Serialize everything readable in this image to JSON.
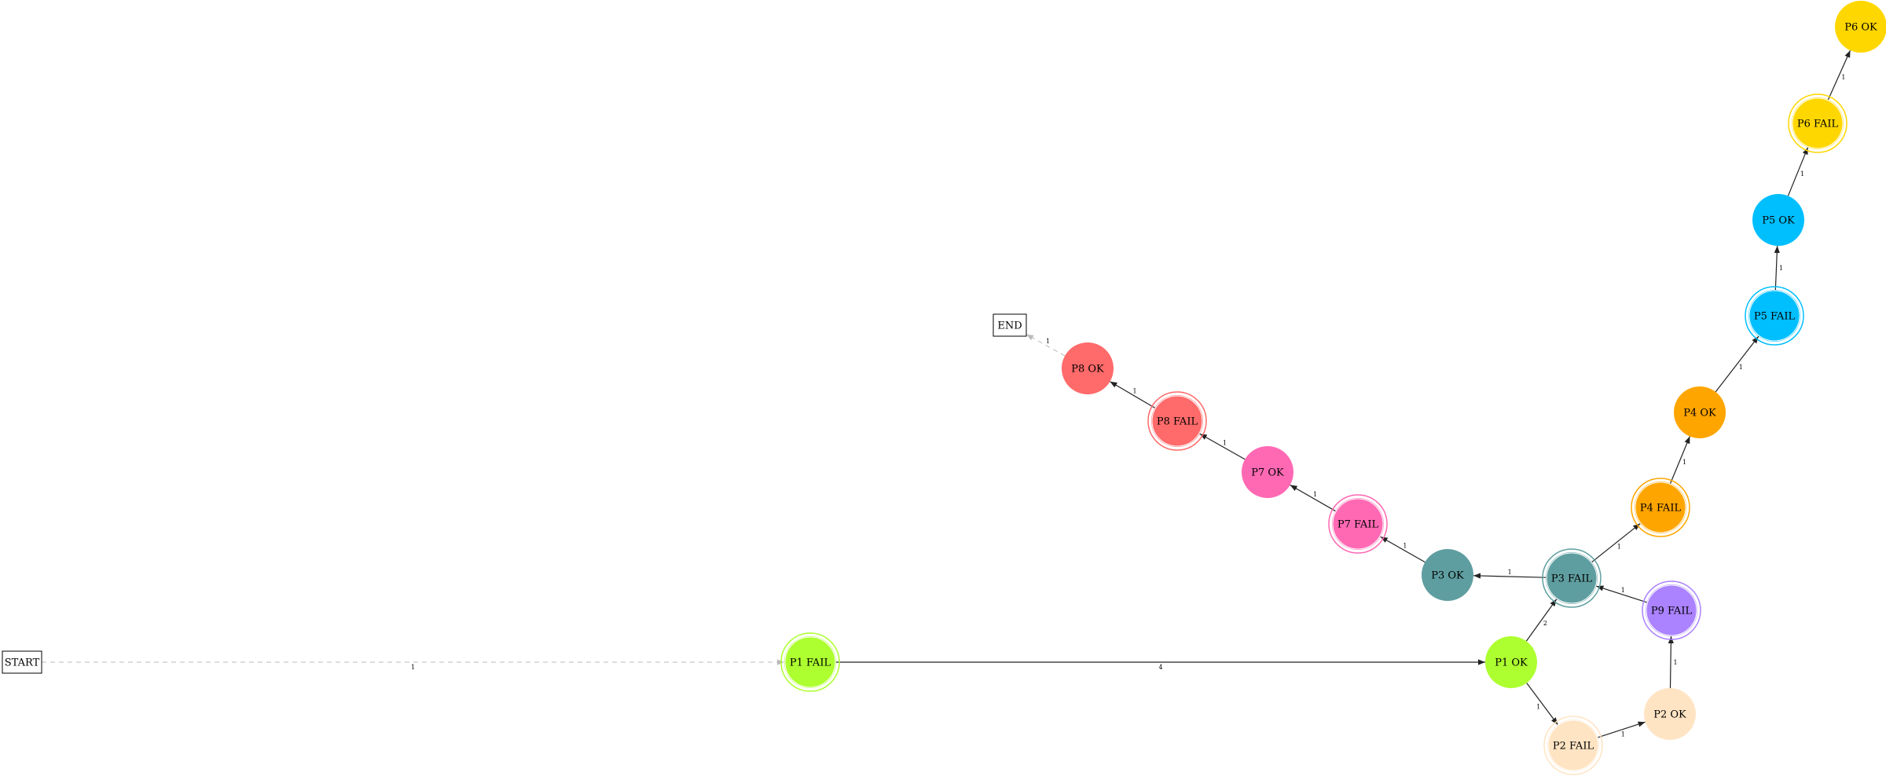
{
  "nodes": [
    {
      "id": "start",
      "label": "START",
      "shape": "box"
    },
    {
      "id": "end",
      "label": "END",
      "shape": "box"
    },
    {
      "id": "p1fail",
      "label": "P1 FAIL",
      "shape": "doublecircle",
      "color": "#adff2f"
    },
    {
      "id": "p1ok",
      "label": "P1 OK",
      "shape": "circle",
      "color": "#adff2f"
    },
    {
      "id": "p2fail",
      "label": "P2 FAIL",
      "shape": "doublecircle",
      "color": "#ffe4c4"
    },
    {
      "id": "p2ok",
      "label": "P2 OK",
      "shape": "circle",
      "color": "#ffe4c4"
    },
    {
      "id": "p3fail",
      "label": "P3 FAIL",
      "shape": "doublecircle",
      "color": "#5f9ea0"
    },
    {
      "id": "p3ok",
      "label": "P3 OK",
      "shape": "circle",
      "color": "#5f9ea0"
    },
    {
      "id": "p4fail",
      "label": "P4 FAIL",
      "shape": "doublecircle",
      "color": "#ffa500"
    },
    {
      "id": "p4ok",
      "label": "P4 OK",
      "shape": "circle",
      "color": "#ffa500"
    },
    {
      "id": "p5fail",
      "label": "P5 FAIL",
      "shape": "doublecircle",
      "color": "#00bfff"
    },
    {
      "id": "p5ok",
      "label": "P5 OK",
      "shape": "circle",
      "color": "#00bfff"
    },
    {
      "id": "p6fail",
      "label": "P6 FAIL",
      "shape": "doublecircle",
      "color": "#ffd700"
    },
    {
      "id": "p6ok",
      "label": "P6 OK",
      "shape": "circle",
      "color": "#ffd700"
    },
    {
      "id": "p7fail",
      "label": "P7 FAIL",
      "shape": "doublecircle",
      "color": "#ff69b4"
    },
    {
      "id": "p7ok",
      "label": "P7 OK",
      "shape": "circle",
      "color": "#ff69b4"
    },
    {
      "id": "p8fail",
      "label": "P8 FAIL",
      "shape": "doublecircle",
      "color": "#ff6a6a"
    },
    {
      "id": "p8ok",
      "label": "P8 OK",
      "shape": "circle",
      "color": "#ff6a6a"
    },
    {
      "id": "p9fail",
      "label": "P9 FAIL",
      "shape": "doublecircle",
      "color": "#ab82ff"
    }
  ],
  "edges": [
    {
      "from": "start",
      "to": "p1fail",
      "label": "1",
      "style": "dashed"
    },
    {
      "from": "p1fail",
      "to": "p1ok",
      "label": "4",
      "style": "solid"
    },
    {
      "from": "p1ok",
      "to": "p3fail",
      "label": "2",
      "style": "solid"
    },
    {
      "from": "p1ok",
      "to": "p2fail",
      "label": "1",
      "style": "solid"
    },
    {
      "from": "p2fail",
      "to": "p2ok",
      "label": "1",
      "style": "solid"
    },
    {
      "from": "p2ok",
      "to": "p9fail",
      "label": "1",
      "style": "solid"
    },
    {
      "from": "p9fail",
      "to": "p3fail",
      "label": "1",
      "style": "solid"
    },
    {
      "from": "p3fail",
      "to": "p3ok",
      "label": "1",
      "style": "solid"
    },
    {
      "from": "p3fail",
      "to": "p4fail",
      "label": "1",
      "style": "solid"
    },
    {
      "from": "p4fail",
      "to": "p4ok",
      "label": "1",
      "style": "solid"
    },
    {
      "from": "p4ok",
      "to": "p5fail",
      "label": "1",
      "style": "solid"
    },
    {
      "from": "p5fail",
      "to": "p5ok",
      "label": "1",
      "style": "solid"
    },
    {
      "from": "p5ok",
      "to": "p6fail",
      "label": "1",
      "style": "solid"
    },
    {
      "from": "p6fail",
      "to": "p6ok",
      "label": "1",
      "style": "solid"
    },
    {
      "from": "p3ok",
      "to": "p7fail",
      "label": "1",
      "style": "solid"
    },
    {
      "from": "p7fail",
      "to": "p7ok",
      "label": "1",
      "style": "solid"
    },
    {
      "from": "p7ok",
      "to": "p8fail",
      "label": "1",
      "style": "solid"
    },
    {
      "from": "p8fail",
      "to": "p8ok",
      "label": "1",
      "style": "solid"
    },
    {
      "from": "p8ok",
      "to": "end",
      "label": "1",
      "style": "dashed"
    }
  ]
}
